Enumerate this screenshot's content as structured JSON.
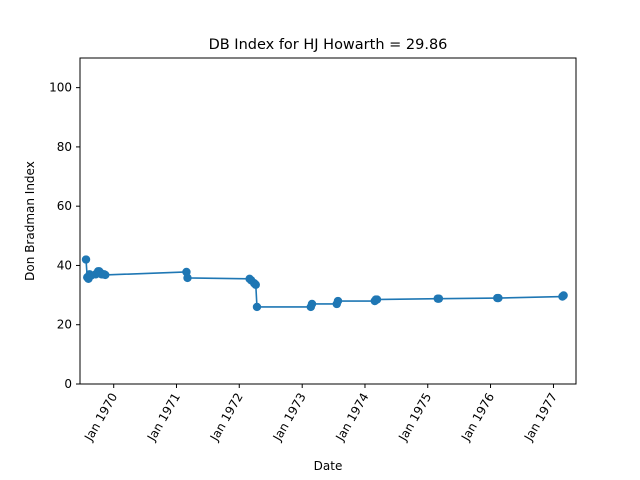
{
  "chart_data": {
    "type": "line",
    "title": "DB Index for HJ Howarth = 29.86",
    "xlabel": "Date",
    "ylabel": "Don Bradman Index",
    "ylim": [
      0,
      110
    ],
    "xlim": [
      "1969-06-19",
      "1977-05-12"
    ],
    "yticks": [
      0,
      20,
      40,
      60,
      80,
      100
    ],
    "xticks": [
      {
        "date": "1970-01-01",
        "label": "Jan 1970"
      },
      {
        "date": "1971-01-01",
        "label": "Jan 1971"
      },
      {
        "date": "1972-01-01",
        "label": "Jan 1972"
      },
      {
        "date": "1973-01-01",
        "label": "Jan 1973"
      },
      {
        "date": "1974-01-01",
        "label": "Jan 1974"
      },
      {
        "date": "1975-01-01",
        "label": "Jan 1975"
      },
      {
        "date": "1976-01-01",
        "label": "Jan 1976"
      },
      {
        "date": "1977-01-01",
        "label": "Jan 1977"
      }
    ],
    "grid": false,
    "color": "#1f77b4",
    "series": [
      {
        "x": [
          "1969-07-24",
          "1969-07-31",
          "1969-08-07",
          "1969-08-14",
          "1969-08-21",
          "1969-09-18",
          "1969-10-02",
          "1969-10-09",
          "1969-10-16",
          "1969-10-23",
          "1969-10-30",
          "1969-11-06",
          "1969-11-13",
          "1971-02-28",
          "1971-03-06",
          "1972-03-01",
          "1972-03-10",
          "1972-03-28",
          "1972-04-06",
          "1972-04-13",
          "1973-02-20",
          "1973-02-27",
          "1973-07-21",
          "1973-07-28",
          "1974-02-27",
          "1974-03-05",
          "1974-03-12",
          "1975-02-28",
          "1975-03-07",
          "1976-02-09",
          "1976-02-16",
          "1977-02-22",
          "1977-03-01"
        ],
        "y": [
          42.0,
          36.0,
          35.5,
          37.0,
          36.5,
          37.0,
          38.0,
          38.0,
          37.5,
          37.0,
          37.0,
          37.0,
          36.8,
          37.8,
          35.8,
          35.5,
          35.0,
          34.0,
          33.5,
          26.0,
          26.0,
          27.0,
          27.0,
          28.0,
          28.0,
          28.5,
          28.5,
          28.8,
          28.8,
          29.0,
          29.0,
          29.5,
          29.86
        ]
      }
    ]
  }
}
